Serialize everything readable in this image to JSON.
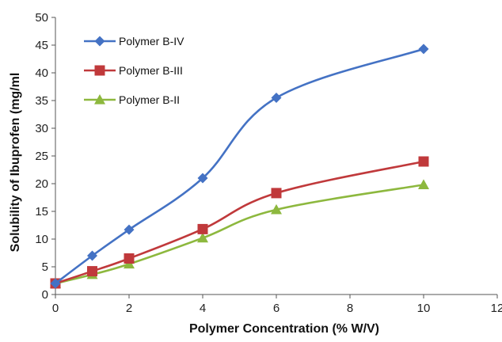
{
  "chart_data": {
    "type": "line",
    "title": "",
    "xlabel": "Polymer  Concentration (% W/V)",
    "ylabel": "Solubility of  Ibuprofen (mg/ml",
    "xlim": [
      0,
      12
    ],
    "ylim": [
      0,
      50
    ],
    "xticks": [
      "0",
      "2",
      "4",
      "6",
      "8",
      "10",
      "12"
    ],
    "yticks": [
      "0",
      "5",
      "10",
      "15",
      "20",
      "25",
      "30",
      "35",
      "40",
      "45",
      "50"
    ],
    "grid": false,
    "legend_position": "top-left",
    "x": [
      0,
      1,
      2,
      4,
      6,
      10
    ],
    "series": [
      {
        "name": "Polymer B-IV",
        "color": "#4472C4",
        "marker": "diamond",
        "values": [
          2,
          7,
          11.7,
          21,
          35.5,
          44.3
        ]
      },
      {
        "name": "Polymer B-III",
        "color": "#C0393B",
        "marker": "square",
        "values": [
          2,
          4.2,
          6.5,
          11.8,
          18.3,
          24
        ]
      },
      {
        "name": "Polymer B-II",
        "color": "#8DB83E",
        "marker": "triangle",
        "values": [
          2,
          3.6,
          5.5,
          10.2,
          15.3,
          19.8
        ]
      }
    ]
  }
}
